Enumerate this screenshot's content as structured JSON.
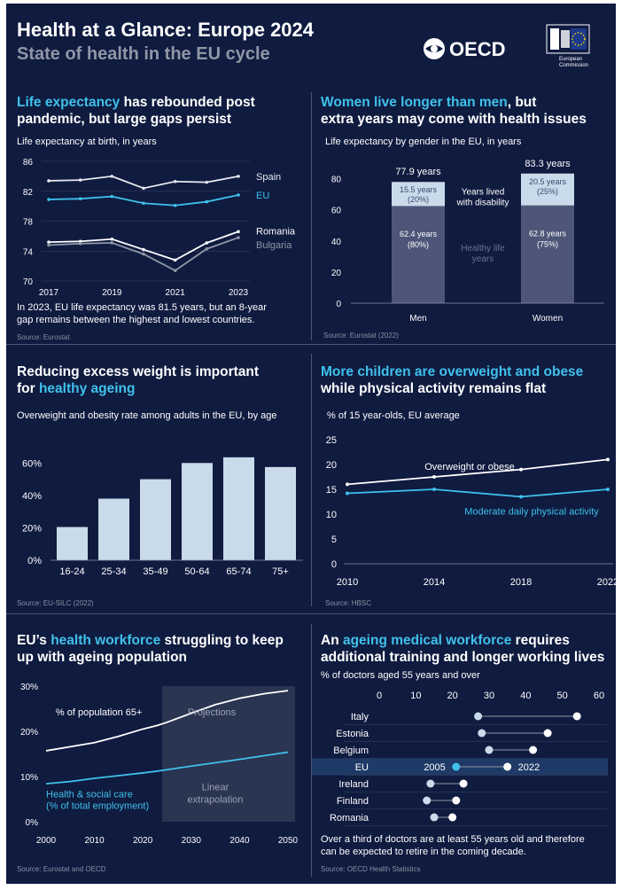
{
  "header": {
    "title": "Health at a Glance: Europe 2024",
    "subtitle": "State of health in the EU cycle",
    "oecd_logo": "OECD",
    "ec_logo_line1": "European",
    "ec_logo_line2": "Commission"
  },
  "panel1": {
    "heading_hl": "Life expectancy",
    "heading_rest1": " has rebounded post",
    "heading_line2": "pandemic, but large gaps persist",
    "caption": "Life expectancy at birth, in years",
    "note_line1": "In 2023, EU life expectancy was 81.5 years, but an 8-year",
    "note_line2": "gap remains between the highest and lowest countries.",
    "source": "Source: Eurostat"
  },
  "panel2": {
    "heading_hl": "Women live longer than men",
    "heading_rest1": ", but",
    "heading_line2": "extra years may come with health issues",
    "caption": "Life expectancy by gender in the EU, in years",
    "source": "Source: Eurostat (2022)"
  },
  "panel3": {
    "heading_line1": "Reducing excess weight is important",
    "heading_pre2": "for ",
    "heading_hl": "healthy ageing",
    "caption": "Overweight and obesity rate among adults in the EU, by age",
    "source": "Source: EU-SILC (2022)"
  },
  "panel4": {
    "heading_hl": "More children are overweight and obese",
    "heading_line2": "while physical activity remains flat",
    "caption": "% of 15 year-olds, EU average",
    "source": "Source: HBSC"
  },
  "panel5": {
    "heading_pre": "EU’s ",
    "heading_hl": "health workforce",
    "heading_rest1": " struggling to keep",
    "heading_line2": "up with ageing population",
    "source": "Source: Eurostat and OECD"
  },
  "panel6": {
    "heading_pre": "An ",
    "heading_hl": "ageing medical workforce",
    "heading_rest1": " requires",
    "heading_line2": "additional training and longer working lives",
    "caption": "% of doctors aged 55 years and over",
    "note_line1": "Over a third of doctors are at least 55 years old and therefore",
    "note_line2": "can be expected to retire in the coming decade.",
    "source": "Source: OECD Health Statistics"
  },
  "colors": {
    "background": "#0f1b3f",
    "accent": "#3fc1ec",
    "muted": "#8f96a6",
    "bar_light": "#c9dbea",
    "bar_dark": "#4d5678"
  },
  "chart_data": [
    {
      "id": "life_expectancy",
      "type": "line",
      "title": "Life expectancy at birth, in years",
      "x": [
        2017,
        2018,
        2019,
        2020,
        2021,
        2022,
        2023
      ],
      "x_ticks": [
        "2017",
        "2019",
        "2021",
        "2023"
      ],
      "y_ticks": [
        "86",
        "82",
        "78",
        "74",
        "70"
      ],
      "ylim": [
        70,
        86
      ],
      "series": [
        {
          "name": "Spain",
          "values": [
            83.4,
            83.5,
            84.0,
            82.4,
            83.3,
            83.2,
            84.0
          ],
          "color": "#e6e8ee"
        },
        {
          "name": "EU",
          "values": [
            80.9,
            81.0,
            81.3,
            80.4,
            80.1,
            80.6,
            81.5
          ],
          "color": "#3fc1ec"
        },
        {
          "name": "Romania",
          "values": [
            75.2,
            75.3,
            75.6,
            74.2,
            72.8,
            75.1,
            76.6
          ],
          "color": "#ffffff"
        },
        {
          "name": "Bulgaria",
          "values": [
            74.8,
            75.0,
            75.1,
            73.6,
            71.4,
            74.3,
            75.8
          ],
          "color": "#8f96a6"
        }
      ]
    },
    {
      "id": "life_expectancy_gender",
      "type": "bar",
      "title": "Life expectancy by gender in the EU, in years",
      "categories": [
        "Men",
        "Women"
      ],
      "y_ticks": [
        "80",
        "60",
        "40",
        "20",
        "0"
      ],
      "ylim": [
        0,
        90
      ],
      "totals": [
        "77.9 years",
        "83.3 years"
      ],
      "series": [
        {
          "name": "Healthy life years",
          "values": [
            62.4,
            62.8
          ],
          "labels": [
            "62.4 years",
            "62.8 years"
          ],
          "pct": [
            "(80%)",
            "(75%)"
          ]
        },
        {
          "name": "Years lived with disability",
          "values": [
            15.5,
            20.5
          ],
          "labels": [
            "15.5 years",
            "20.5 years"
          ],
          "pct": [
            "(20%)",
            "(25%)"
          ]
        }
      ],
      "legend_disability_line1": "Years lived",
      "legend_disability_line2": "with disability",
      "legend_healthy_line1": "Healthy life",
      "legend_healthy_line2": "years"
    },
    {
      "id": "overweight_by_age",
      "type": "bar",
      "title": "Overweight and obesity rate among adults in the EU, by age",
      "categories": [
        "16-24",
        "25-34",
        "35-49",
        "50-64",
        "65-74",
        "75+"
      ],
      "values": [
        20.5,
        38,
        50,
        60,
        63.5,
        57.5
      ],
      "y_ticks": [
        "60%",
        "40%",
        "20%",
        "0%"
      ],
      "ylim": [
        0,
        70
      ]
    },
    {
      "id": "children_overweight",
      "type": "line",
      "title": "% of 15 year-olds, EU average",
      "x": [
        2010,
        2014,
        2018,
        2022
      ],
      "x_ticks": [
        "2010",
        "2014",
        "2018",
        "2022"
      ],
      "y_ticks": [
        "25",
        "20",
        "15",
        "10",
        "5",
        "0"
      ],
      "ylim": [
        0,
        25
      ],
      "series": [
        {
          "name": "Overweight or obese",
          "values": [
            16,
            17.5,
            19,
            21
          ],
          "color": "#ffffff"
        },
        {
          "name": "Moderate daily physical activity",
          "values": [
            14.2,
            15,
            13.5,
            15
          ],
          "color": "#3fc1ec"
        }
      ]
    },
    {
      "id": "workforce_population",
      "type": "line",
      "x_ticks": [
        "2000",
        "2010",
        "2020",
        "2030",
        "2040",
        "2050"
      ],
      "y_ticks": [
        "30%",
        "20%",
        "10%",
        "0%"
      ],
      "ylim": [
        0,
        30
      ],
      "xlim": [
        2000,
        2050
      ],
      "projection_start": 2024,
      "projection_label": "Projections",
      "extrapolation_line1": "Linear",
      "extrapolation_line2": "extrapolation",
      "series": [
        {
          "name": "% of population 65+",
          "x": [
            2000,
            2005,
            2010,
            2015,
            2020,
            2023,
            2025,
            2030,
            2035,
            2040,
            2045,
            2050
          ],
          "values": [
            15.7,
            16.6,
            17.5,
            18.9,
            20.5,
            21.3,
            22.0,
            24.0,
            25.9,
            27.3,
            28.3,
            29.0
          ],
          "color": "#ffffff"
        },
        {
          "name": "Health & social care (% of total employment)",
          "x": [
            2000,
            2005,
            2010,
            2015,
            2020,
            2023,
            2030,
            2040,
            2050
          ],
          "values": [
            8.4,
            8.9,
            9.6,
            10.2,
            10.8,
            11.2,
            12.3,
            13.8,
            15.4
          ],
          "color": "#3fc1ec"
        }
      ],
      "label_65": "% of population 65+",
      "label_care_line1": "Health & social care",
      "label_care_line2": "(% of total employment)"
    },
    {
      "id": "doctors_55_plus",
      "type": "scatter",
      "title": "% of doctors aged 55 years and over",
      "x_ticks": [
        "0",
        "10",
        "20",
        "30",
        "40",
        "50",
        "60"
      ],
      "xlim": [
        0,
        60
      ],
      "categories": [
        "Italy",
        "Estonia",
        "Belgium",
        "EU",
        "Ireland",
        "Finland",
        "Romania"
      ],
      "series": [
        {
          "name": "2005",
          "values": [
            27,
            28,
            30,
            21,
            14,
            13,
            15
          ]
        },
        {
          "name": "2022",
          "values": [
            54,
            46,
            42,
            35,
            23,
            21,
            20
          ]
        }
      ],
      "label_2005": "2005",
      "label_2022": "2022"
    }
  ]
}
